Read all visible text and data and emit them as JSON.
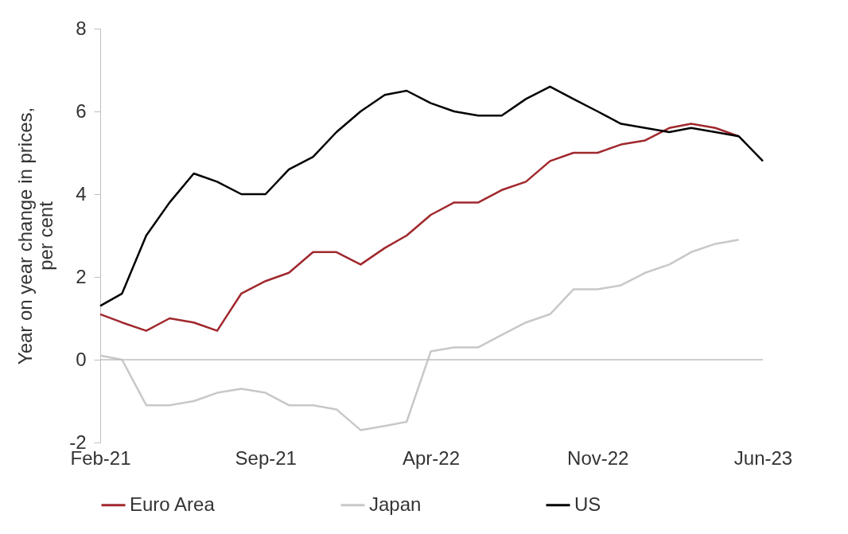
{
  "chart_data": {
    "type": "line",
    "ylabel": "Year on year change in prices, per cent",
    "x": [
      "2021-02",
      "2021-03",
      "2021-04",
      "2021-05",
      "2021-06",
      "2021-07",
      "2021-08",
      "2021-09",
      "2021-10",
      "2021-11",
      "2021-12",
      "2022-01",
      "2022-02",
      "2022-03",
      "2022-04",
      "2022-05",
      "2022-06",
      "2022-07",
      "2022-08",
      "2022-09",
      "2022-10",
      "2022-11",
      "2022-12",
      "2023-01",
      "2023-02",
      "2023-03",
      "2023-04",
      "2023-05",
      "2023-06"
    ],
    "series": [
      {
        "name": "Euro Area",
        "color": "#a0282d",
        "values": [
          1.1,
          0.9,
          0.7,
          1.0,
          0.9,
          0.7,
          1.6,
          1.9,
          2.1,
          2.6,
          2.6,
          2.3,
          2.7,
          3.0,
          3.5,
          3.8,
          3.8,
          4.1,
          4.3,
          4.8,
          5.0,
          5.0,
          5.2,
          5.3,
          5.6,
          5.7,
          5.6,
          5.4,
          null
        ]
      },
      {
        "name": "Japan",
        "color": "#c8c8c8",
        "values": [
          0.1,
          0.0,
          -1.1,
          -1.1,
          -1.0,
          -0.8,
          -0.7,
          -0.8,
          -1.1,
          -1.1,
          -1.2,
          -1.7,
          -1.6,
          -1.5,
          0.2,
          0.3,
          0.3,
          0.6,
          0.9,
          1.1,
          1.7,
          1.7,
          1.8,
          2.1,
          2.3,
          2.6,
          2.8,
          2.9,
          null
        ]
      },
      {
        "name": "US",
        "color": "#000000",
        "values": [
          1.3,
          1.6,
          3.0,
          3.8,
          4.5,
          4.3,
          4.0,
          4.0,
          4.6,
          4.9,
          5.5,
          6.0,
          6.4,
          6.5,
          6.2,
          6.0,
          5.9,
          5.9,
          6.3,
          6.6,
          6.3,
          6.0,
          5.7,
          5.6,
          5.5,
          5.6,
          5.5,
          5.4,
          4.8
        ]
      }
    ],
    "xlim": [
      "2021-02",
      "2023-06"
    ],
    "xticks": [
      {
        "value": "2021-02",
        "label": "Feb-21"
      },
      {
        "value": "2021-09",
        "label": "Sep-21"
      },
      {
        "value": "2022-04",
        "label": "Apr-22"
      },
      {
        "value": "2022-11",
        "label": "Nov-22"
      },
      {
        "value": "2023-06",
        "label": "Jun-23"
      }
    ],
    "ylim": [
      -2,
      8
    ],
    "yticks": [
      -2,
      0,
      2,
      4,
      6,
      8
    ],
    "ref_lines": [
      {
        "axis": "y",
        "value": 0,
        "color": "#bfbfbf"
      }
    ],
    "grid": false,
    "legend": "bottom",
    "marker": "none",
    "line_style": "solid"
  }
}
